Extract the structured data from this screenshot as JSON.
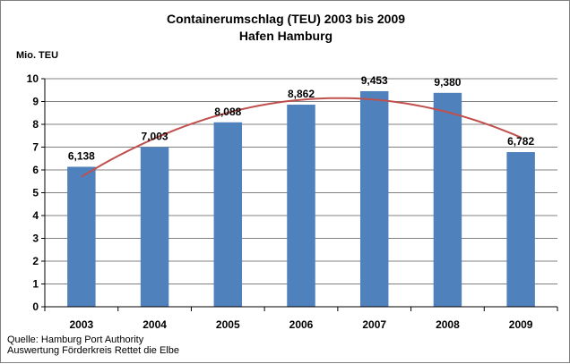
{
  "chart_data": {
    "type": "bar",
    "title": "Containerumschlag (TEU) 2003 bis 2009",
    "subtitle": "Hafen Hamburg",
    "ylabel": "Mio. TEU",
    "xlabel": "",
    "ylim": [
      0,
      10
    ],
    "yticks": [
      "0",
      "1",
      "2",
      "3",
      "4",
      "5",
      "6",
      "7",
      "8",
      "9",
      "10"
    ],
    "grid": true,
    "legend": "none",
    "categories": [
      "2003",
      "2004",
      "2005",
      "2006",
      "2007",
      "2008",
      "2009"
    ],
    "values": [
      6.138,
      7.003,
      8.088,
      8.862,
      9.453,
      9.38,
      6.782
    ],
    "data_labels": [
      "6,138",
      "7,003",
      "8,088",
      "8,862",
      "9,453",
      "9,380",
      "6,782"
    ],
    "trendline": {
      "type": "polynomial",
      "color": "#C0504D"
    },
    "bar_color": "#4F81BD"
  },
  "footer": {
    "source": "Quelle: Hamburg Port Authority",
    "credit": "Auswertung Förderkreis Rettet die Elbe"
  }
}
